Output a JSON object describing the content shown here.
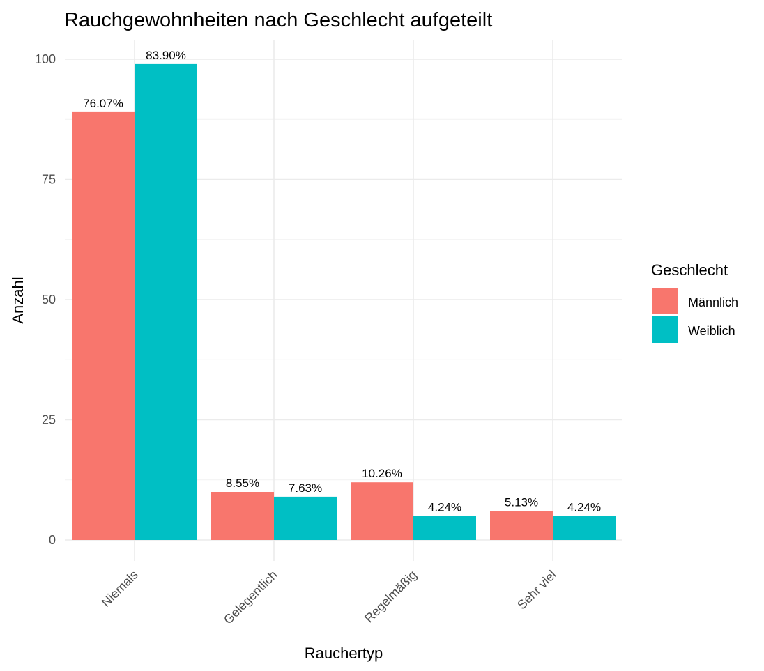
{
  "chart_data": {
    "type": "bar",
    "title": "Rauchgewohnheiten nach Geschlecht aufgeteilt",
    "xlabel": "Rauchertyp",
    "ylabel": "Anzahl",
    "categories": [
      "Niemals",
      "Gelegentlich",
      "Regelmäßig",
      "Sehr viel"
    ],
    "ylim": [
      0,
      100
    ],
    "yticks": [
      "0",
      "25",
      "50",
      "75",
      "100"
    ],
    "grid": true,
    "legend": {
      "title": "Geschlecht",
      "placement": "right"
    },
    "series": [
      {
        "name": "Männlich",
        "color": "#F8766D",
        "values": [
          89,
          10,
          12,
          6
        ],
        "labels": [
          "76.07%",
          "8.55%",
          "10.26%",
          "5.13%"
        ]
      },
      {
        "name": "Weiblich",
        "color": "#00BFC4",
        "values": [
          99,
          9,
          5,
          5
        ],
        "labels": [
          "83.90%",
          "7.63%",
          "4.24%",
          "4.24%"
        ]
      }
    ]
  }
}
